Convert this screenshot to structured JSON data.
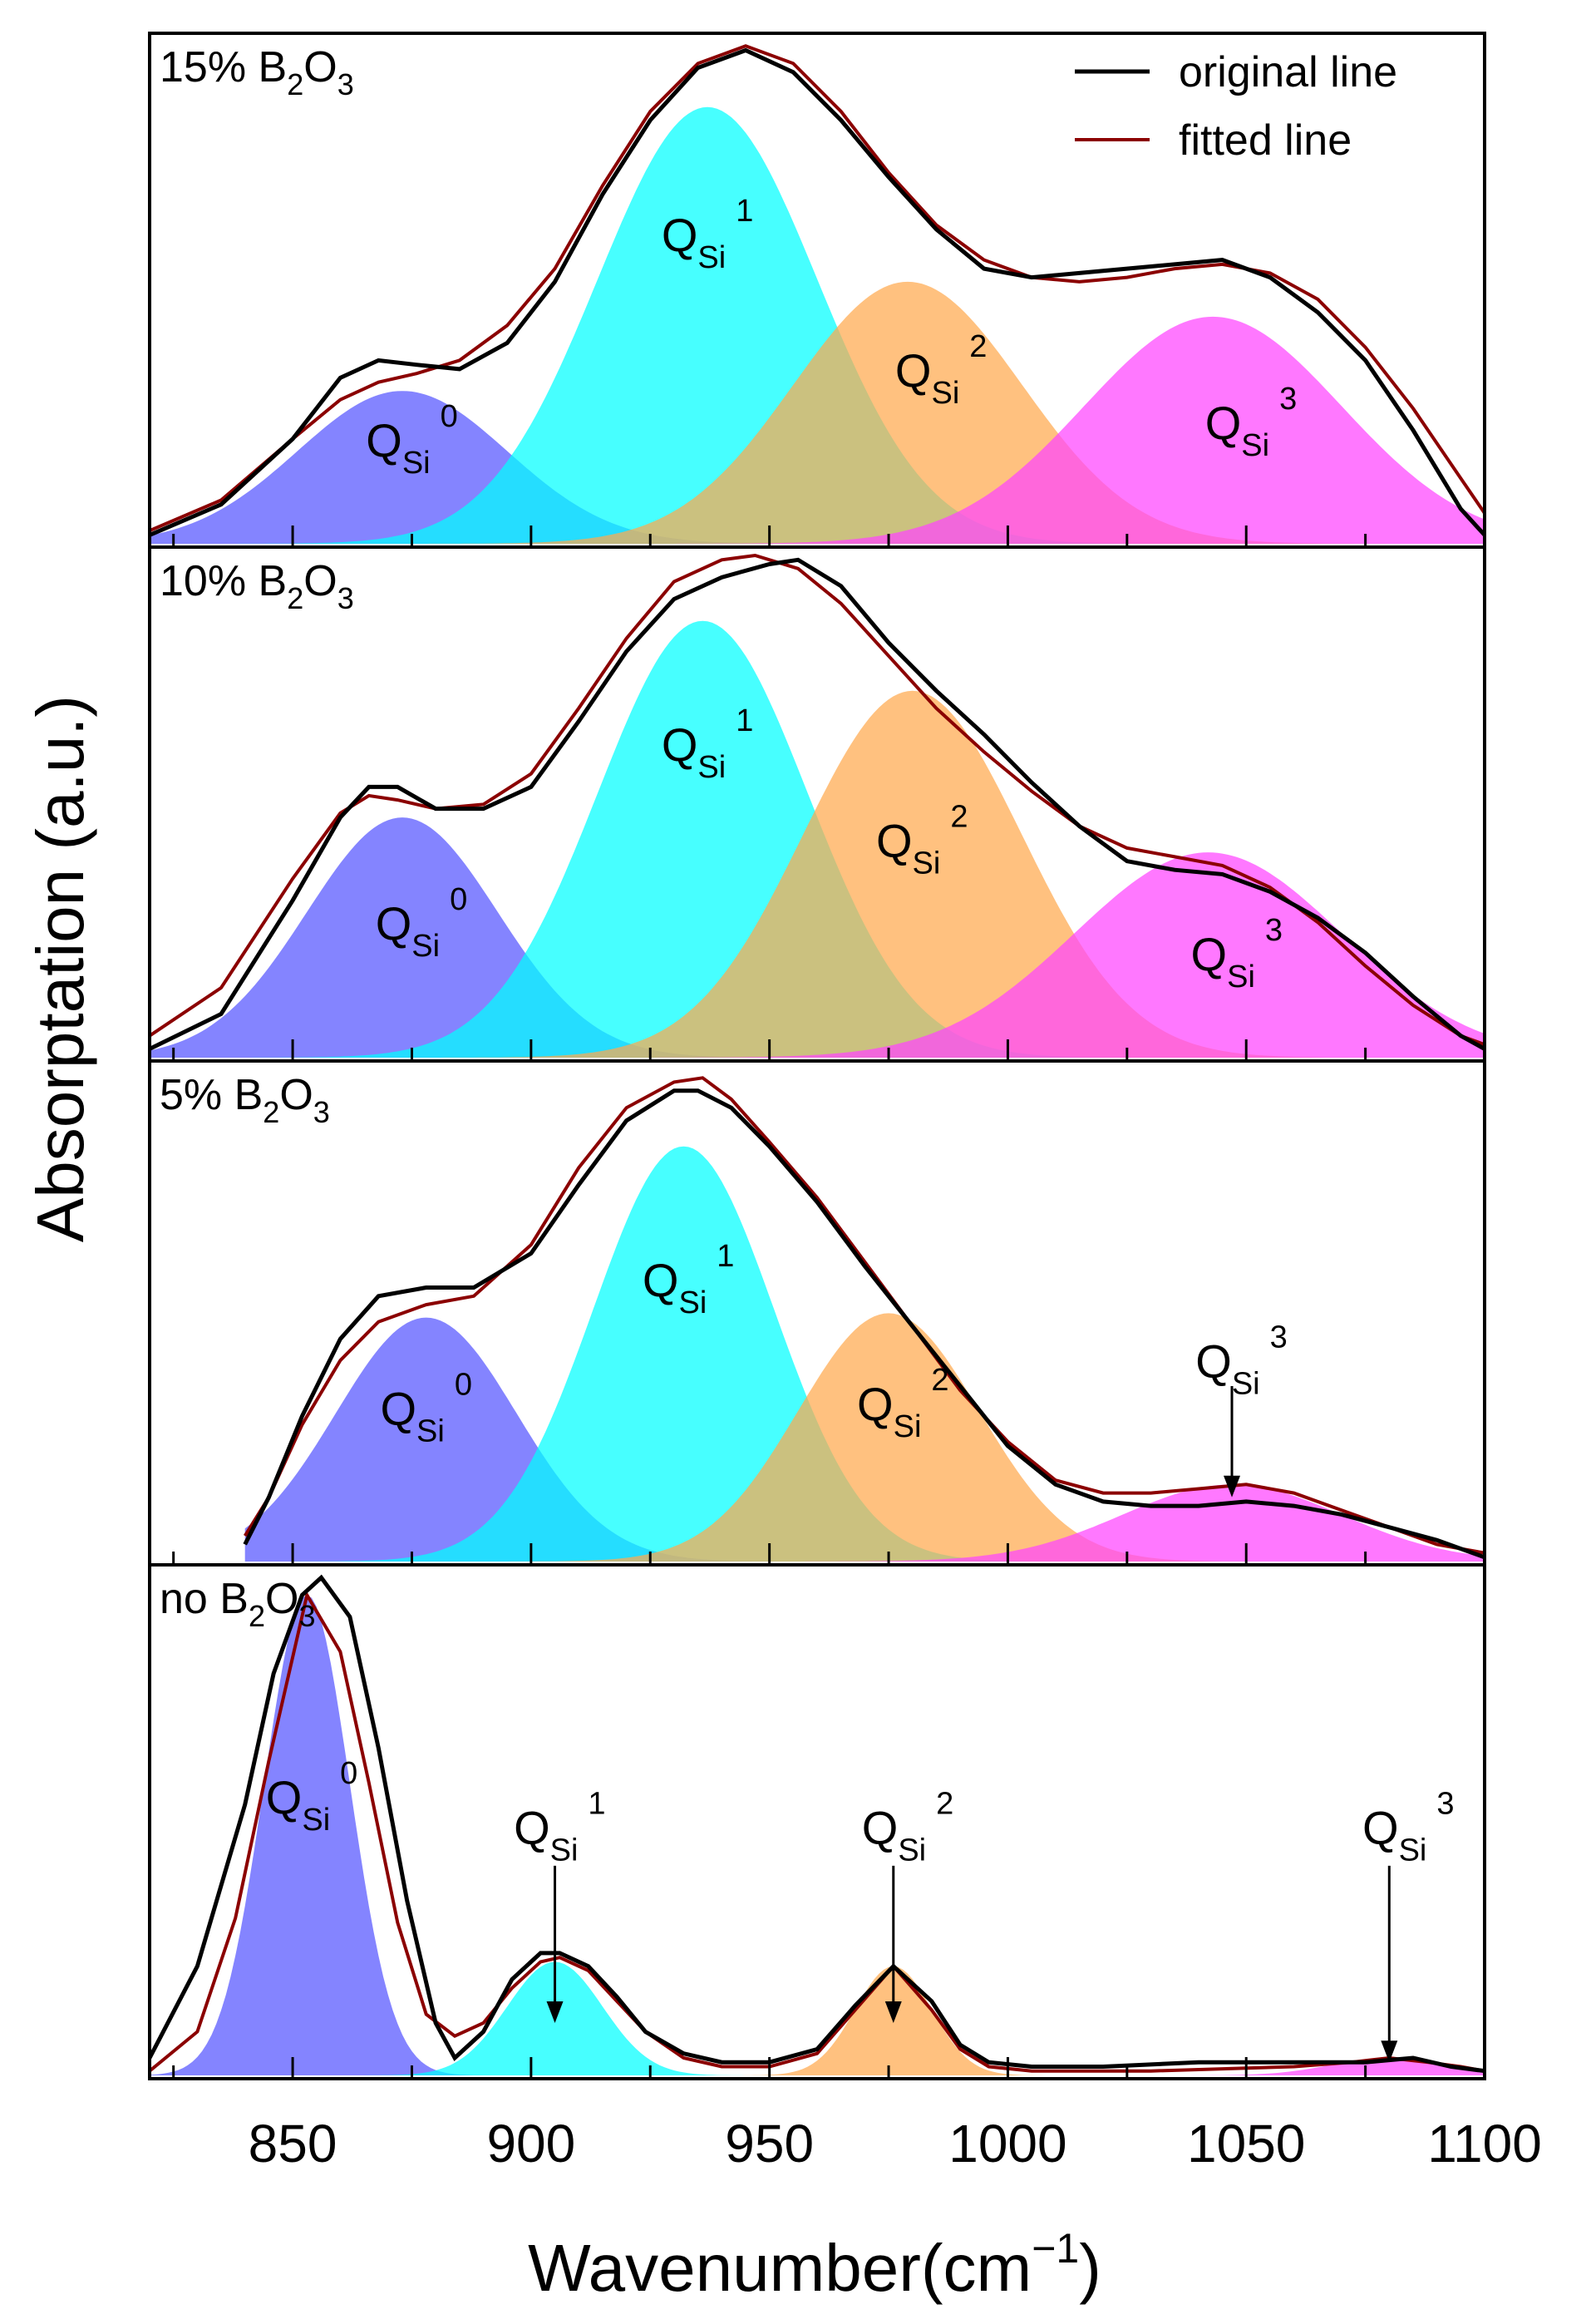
{
  "chart_data": {
    "type": "area",
    "xlabel": "Wavenumber(cm",
    "xlabel_sup": "−1",
    "xlabel_close": ")",
    "ylabel": "Absorptation (a.u.)",
    "xlim": [
      820,
      1100
    ],
    "x_ticks": [
      850,
      900,
      950,
      1000,
      1050,
      1100
    ],
    "minor_tick_step": 25,
    "legend": {
      "position": "top-right",
      "entries": [
        {
          "name": "original line",
          "color": "#000000"
        },
        {
          "name": "fitted line",
          "color": "#8b0000"
        }
      ]
    },
    "component_colors": [
      "#5555ff",
      "#00ffff",
      "#ffa94d",
      "#ff44ff"
    ],
    "panels": [
      {
        "label": "15% B",
        "label_sub": "2",
        "label_mid": "O",
        "label_sub2": "3",
        "ylim": [
          0,
          1.15
        ],
        "components": [
          {
            "name": "Q",
            "sub": "Si",
            "sup": "0",
            "center": 873,
            "height": 0.35,
            "sigma": 22,
            "label_x": 872,
            "label_y": 0.2,
            "arrow": false
          },
          {
            "name": "Q",
            "sub": "Si",
            "sup": "1",
            "center": 937,
            "height": 1.0,
            "sigma": 23,
            "label_x": 934,
            "label_y": 0.67,
            "arrow": false
          },
          {
            "name": "Q",
            "sub": "Si",
            "sup": "2",
            "center": 979,
            "height": 0.6,
            "sigma": 24,
            "label_x": 983,
            "label_y": 0.36,
            "arrow": false
          },
          {
            "name": "Q",
            "sub": "Si",
            "sup": "3",
            "center": 1043,
            "height": 0.52,
            "sigma": 27,
            "label_x": 1048,
            "label_y": 0.24,
            "arrow": false
          }
        ],
        "original": {
          "x": [
            820,
            835,
            850,
            860,
            868,
            876,
            885,
            895,
            905,
            915,
            925,
            935,
            945,
            955,
            965,
            975,
            985,
            995,
            1005,
            1015,
            1025,
            1035,
            1045,
            1055,
            1065,
            1075,
            1085,
            1095,
            1100
          ],
          "y": [
            0.02,
            0.09,
            0.24,
            0.38,
            0.42,
            0.41,
            0.4,
            0.46,
            0.6,
            0.8,
            0.97,
            1.09,
            1.13,
            1.08,
            0.97,
            0.84,
            0.72,
            0.63,
            0.61,
            0.62,
            0.63,
            0.64,
            0.65,
            0.61,
            0.53,
            0.42,
            0.26,
            0.08,
            0.02
          ]
        },
        "fitted": {
          "x": [
            820,
            835,
            850,
            860,
            868,
            876,
            885,
            895,
            905,
            915,
            925,
            935,
            945,
            955,
            965,
            975,
            985,
            995,
            1005,
            1015,
            1025,
            1035,
            1045,
            1055,
            1065,
            1075,
            1085,
            1095,
            1100
          ],
          "y": [
            0.03,
            0.1,
            0.24,
            0.33,
            0.37,
            0.39,
            0.42,
            0.5,
            0.63,
            0.82,
            0.99,
            1.1,
            1.14,
            1.1,
            0.99,
            0.85,
            0.73,
            0.65,
            0.61,
            0.6,
            0.61,
            0.63,
            0.64,
            0.62,
            0.56,
            0.45,
            0.31,
            0.15,
            0.07
          ]
        }
      },
      {
        "label": "10% B",
        "label_sub": "2",
        "label_mid": "O",
        "label_sub2": "3",
        "ylim": [
          0,
          1.15
        ],
        "components": [
          {
            "name": "Q",
            "sub": "Si",
            "sup": "0",
            "center": 873,
            "height": 0.55,
            "sigma": 20,
            "label_x": 874,
            "label_y": 0.27,
            "arrow": false
          },
          {
            "name": "Q",
            "sub": "Si",
            "sup": "1",
            "center": 936,
            "height": 1.0,
            "sigma": 22,
            "label_x": 934,
            "label_y": 0.68,
            "arrow": false
          },
          {
            "name": "Q",
            "sub": "Si",
            "sup": "2",
            "center": 980,
            "height": 0.84,
            "sigma": 23,
            "label_x": 979,
            "label_y": 0.46,
            "arrow": false
          },
          {
            "name": "Q",
            "sub": "Si",
            "sup": "3",
            "center": 1042,
            "height": 0.47,
            "sigma": 28,
            "label_x": 1045,
            "label_y": 0.2,
            "arrow": false
          }
        ],
        "original": {
          "x": [
            820,
            835,
            850,
            860,
            866,
            872,
            880,
            890,
            900,
            910,
            920,
            930,
            940,
            950,
            956,
            965,
            975,
            985,
            995,
            1005,
            1015,
            1025,
            1035,
            1045,
            1055,
            1065,
            1075,
            1085,
            1095,
            1100
          ],
          "y": [
            0.02,
            0.1,
            0.36,
            0.55,
            0.62,
            0.62,
            0.57,
            0.57,
            0.62,
            0.77,
            0.93,
            1.05,
            1.1,
            1.13,
            1.14,
            1.08,
            0.95,
            0.84,
            0.74,
            0.63,
            0.53,
            0.45,
            0.43,
            0.42,
            0.38,
            0.32,
            0.24,
            0.14,
            0.05,
            0.02
          ]
        },
        "fitted": {
          "x": [
            820,
            835,
            850,
            860,
            866,
            872,
            880,
            890,
            900,
            910,
            920,
            930,
            940,
            947,
            956,
            965,
            975,
            985,
            995,
            1005,
            1015,
            1025,
            1035,
            1045,
            1055,
            1065,
            1075,
            1085,
            1095,
            1100
          ],
          "y": [
            0.05,
            0.16,
            0.41,
            0.56,
            0.6,
            0.59,
            0.57,
            0.58,
            0.65,
            0.8,
            0.96,
            1.09,
            1.14,
            1.15,
            1.12,
            1.04,
            0.92,
            0.8,
            0.7,
            0.61,
            0.53,
            0.48,
            0.46,
            0.44,
            0.39,
            0.31,
            0.21,
            0.12,
            0.05,
            0.03
          ]
        }
      },
      {
        "label": "5% B",
        "label_sub": "2",
        "label_mid": "O",
        "label_sub2": "3",
        "ylim": [
          0,
          1.15
        ],
        "components": [
          {
            "name": "Q",
            "sub": "Si",
            "sup": "0",
            "center": 878,
            "height": 0.57,
            "sigma": 19,
            "label_x": 875,
            "label_y": 0.32,
            "arrow": false
          },
          {
            "name": "Q",
            "sub": "Si",
            "sup": "1",
            "center": 932,
            "height": 0.97,
            "sigma": 19,
            "label_x": 930,
            "label_y": 0.62,
            "arrow": false
          },
          {
            "name": "Q",
            "sub": "Si",
            "sup": "2",
            "center": 975,
            "height": 0.58,
            "sigma": 19,
            "label_x": 975,
            "label_y": 0.33,
            "arrow": false
          },
          {
            "name": "Q",
            "sub": "Si",
            "sup": "3",
            "center": 1047,
            "height": 0.18,
            "sigma": 23,
            "label_x": 1046,
            "label_y": 0.43,
            "arrow": true,
            "arrow_top": 0.41,
            "arrow_bottom": 0.15
          }
        ],
        "original": {
          "x": [
            840,
            845,
            852,
            860,
            868,
            878,
            888,
            900,
            910,
            920,
            930,
            935,
            942,
            950,
            960,
            970,
            980,
            990,
            1000,
            1010,
            1020,
            1030,
            1040,
            1050,
            1060,
            1070,
            1080,
            1090,
            1100
          ],
          "y": [
            0.04,
            0.15,
            0.34,
            0.52,
            0.62,
            0.64,
            0.64,
            0.72,
            0.88,
            1.03,
            1.1,
            1.1,
            1.06,
            0.97,
            0.84,
            0.69,
            0.55,
            0.41,
            0.27,
            0.18,
            0.14,
            0.13,
            0.13,
            0.14,
            0.13,
            0.11,
            0.08,
            0.05,
            0.01
          ]
        },
        "fitted": {
          "x": [
            840,
            845,
            852,
            860,
            868,
            878,
            888,
            900,
            910,
            920,
            930,
            936,
            942,
            950,
            960,
            970,
            980,
            990,
            1000,
            1010,
            1020,
            1030,
            1040,
            1050,
            1060,
            1070,
            1080,
            1090,
            1100
          ],
          "y": [
            0.06,
            0.15,
            0.32,
            0.47,
            0.56,
            0.6,
            0.62,
            0.74,
            0.92,
            1.06,
            1.12,
            1.13,
            1.08,
            0.98,
            0.85,
            0.7,
            0.55,
            0.4,
            0.28,
            0.19,
            0.16,
            0.16,
            0.17,
            0.18,
            0.16,
            0.12,
            0.08,
            0.04,
            0.02
          ]
        }
      },
      {
        "label": "no B",
        "label_sub": "2",
        "label_mid": "O",
        "label_sub2": "3",
        "ylim": [
          0,
          1.15
        ],
        "components": [
          {
            "name": "Q",
            "sub": "Si",
            "sup": "0",
            "center": 853,
            "height": 1.1,
            "sigma": 9,
            "label_x": 851,
            "label_y": 0.6,
            "arrow": false
          },
          {
            "name": "Q",
            "sub": "Si",
            "sup": "1",
            "center": 905,
            "height": 0.26,
            "sigma": 10,
            "label_x": 903,
            "label_y": 0.53,
            "arrow": true,
            "arrow_top": 0.48,
            "arrow_bottom": 0.12
          },
          {
            "name": "Q",
            "sub": "Si",
            "sup": "2",
            "center": 976,
            "height": 0.25,
            "sigma": 8,
            "label_x": 976,
            "label_y": 0.53,
            "arrow": true,
            "arrow_top": 0.48,
            "arrow_bottom": 0.12
          },
          {
            "name": "Q",
            "sub": "Si",
            "sup": "3",
            "center": 1080,
            "height": 0.04,
            "sigma": 12,
            "label_x": 1081,
            "label_y": 0.53,
            "arrow": true,
            "arrow_top": 0.48,
            "arrow_bottom": 0.03
          }
        ],
        "original": {
          "x": [
            820,
            830,
            840,
            846,
            852,
            856,
            862,
            868,
            874,
            880,
            884,
            890,
            896,
            902,
            906,
            912,
            918,
            924,
            932,
            940,
            950,
            960,
            968,
            976,
            984,
            990,
            996,
            1005,
            1020,
            1040,
            1060,
            1075,
            1085,
            1093,
            1100
          ],
          "y": [
            0.04,
            0.25,
            0.62,
            0.92,
            1.1,
            1.14,
            1.05,
            0.75,
            0.4,
            0.12,
            0.04,
            0.1,
            0.22,
            0.28,
            0.28,
            0.25,
            0.18,
            0.1,
            0.05,
            0.03,
            0.03,
            0.06,
            0.16,
            0.25,
            0.17,
            0.07,
            0.03,
            0.02,
            0.02,
            0.03,
            0.03,
            0.03,
            0.04,
            0.02,
            0.01
          ]
        },
        "fitted": {
          "x": [
            820,
            830,
            838,
            845,
            853,
            860,
            866,
            872,
            878,
            884,
            890,
            896,
            902,
            906,
            912,
            918,
            924,
            932,
            940,
            950,
            960,
            968,
            976,
            984,
            990,
            996,
            1005,
            1030,
            1060,
            1072,
            1080,
            1088,
            1095,
            1100
          ],
          "y": [
            0.01,
            0.1,
            0.36,
            0.72,
            1.1,
            0.97,
            0.67,
            0.35,
            0.14,
            0.09,
            0.12,
            0.2,
            0.26,
            0.27,
            0.24,
            0.17,
            0.1,
            0.04,
            0.02,
            0.02,
            0.05,
            0.15,
            0.25,
            0.15,
            0.06,
            0.02,
            0.01,
            0.01,
            0.02,
            0.03,
            0.04,
            0.03,
            0.02,
            0.01
          ]
        }
      }
    ]
  }
}
